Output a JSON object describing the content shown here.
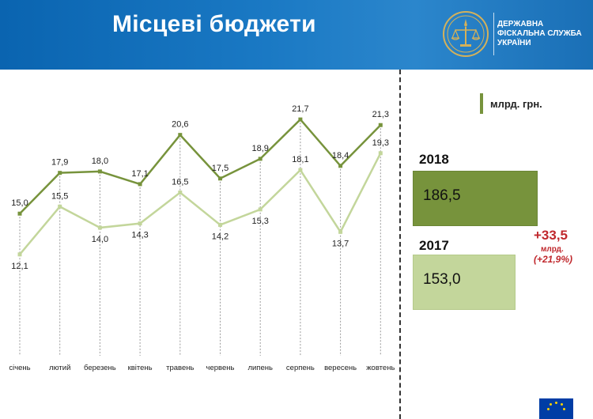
{
  "header": {
    "title": "Місцеві бюджети",
    "agency_lines": [
      "ДЕРЖАВНА",
      "ФІСКАЛЬНА СЛУЖБА",
      "УКРАЇНИ"
    ]
  },
  "colors": {
    "header_blue": "#1a79c4",
    "series_2018": "#77933c",
    "series_2017": "#c3d69b",
    "delta_red": "#c0282d"
  },
  "icons": {
    "emblem": "tax-service-emblem-icon",
    "flag": "eu-flag-icon"
  },
  "legend": {
    "unit": "млрд. грн."
  },
  "totals": [
    {
      "year": "2018",
      "value": "186,5",
      "amount": 186.5
    },
    {
      "year": "2017",
      "value": "153,0",
      "amount": 153.0
    }
  ],
  "delta": {
    "value": "+33,5",
    "unit": "млрд.",
    "percent": "(+21,9%)"
  },
  "chart_data": {
    "type": "line",
    "categories": [
      "січень",
      "лютий",
      "березень",
      "квітень",
      "травень",
      "червень",
      "липень",
      "серпень",
      "вересень",
      "жовтень"
    ],
    "series": [
      {
        "name": "2018",
        "values": [
          15.0,
          17.9,
          18.0,
          17.1,
          20.6,
          17.5,
          18.9,
          21.7,
          18.4,
          21.3
        ],
        "labels": [
          "15,0",
          "17,9",
          "18,0",
          "17,1",
          "20,6",
          "17,5",
          "18,9",
          "21,7",
          "18,4",
          "21,3"
        ]
      },
      {
        "name": "2017",
        "values": [
          12.1,
          15.5,
          14.0,
          14.3,
          16.5,
          14.2,
          15.3,
          18.1,
          13.7,
          19.3
        ],
        "labels": [
          "12,1",
          "15,5",
          "14,0",
          "14,3",
          "16,5",
          "14,2",
          "15,3",
          "18,1",
          "13,7",
          "19,3"
        ]
      }
    ],
    "ylim": [
      5,
      23
    ],
    "grid": false,
    "drop_lines": true
  }
}
